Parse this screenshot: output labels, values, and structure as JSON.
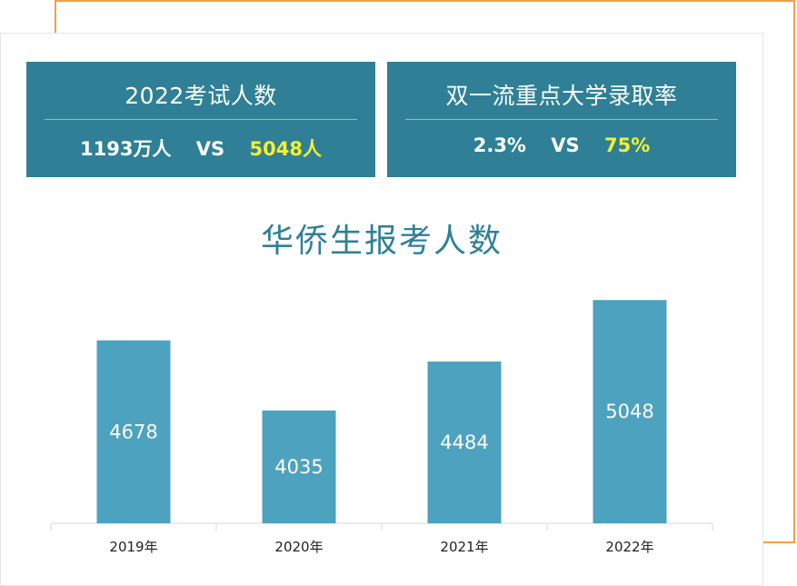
{
  "cards": [
    {
      "title": "2022考试人数",
      "left_value": "1193万人",
      "vs": "VS",
      "right_value": "5048人"
    },
    {
      "title": "双一流重点大学录取率",
      "left_value": "2.3%",
      "vs": "VS",
      "right_value": "75%"
    }
  ],
  "colors": {
    "card_bg": "#2f8096",
    "bar": "#4da2bf",
    "highlight": "#f6f02b",
    "accent_frame": "#f0a04b"
  },
  "chart_data": {
    "type": "bar",
    "title": "华侨生报考人数",
    "categories": [
      "2019年",
      "2020年",
      "2021年",
      "2022年"
    ],
    "values": [
      4678,
      4035,
      4484,
      5048
    ],
    "xlabel": "",
    "ylabel": "",
    "ylim": [
      0,
      5500
    ],
    "grid": false,
    "legend": "none"
  }
}
